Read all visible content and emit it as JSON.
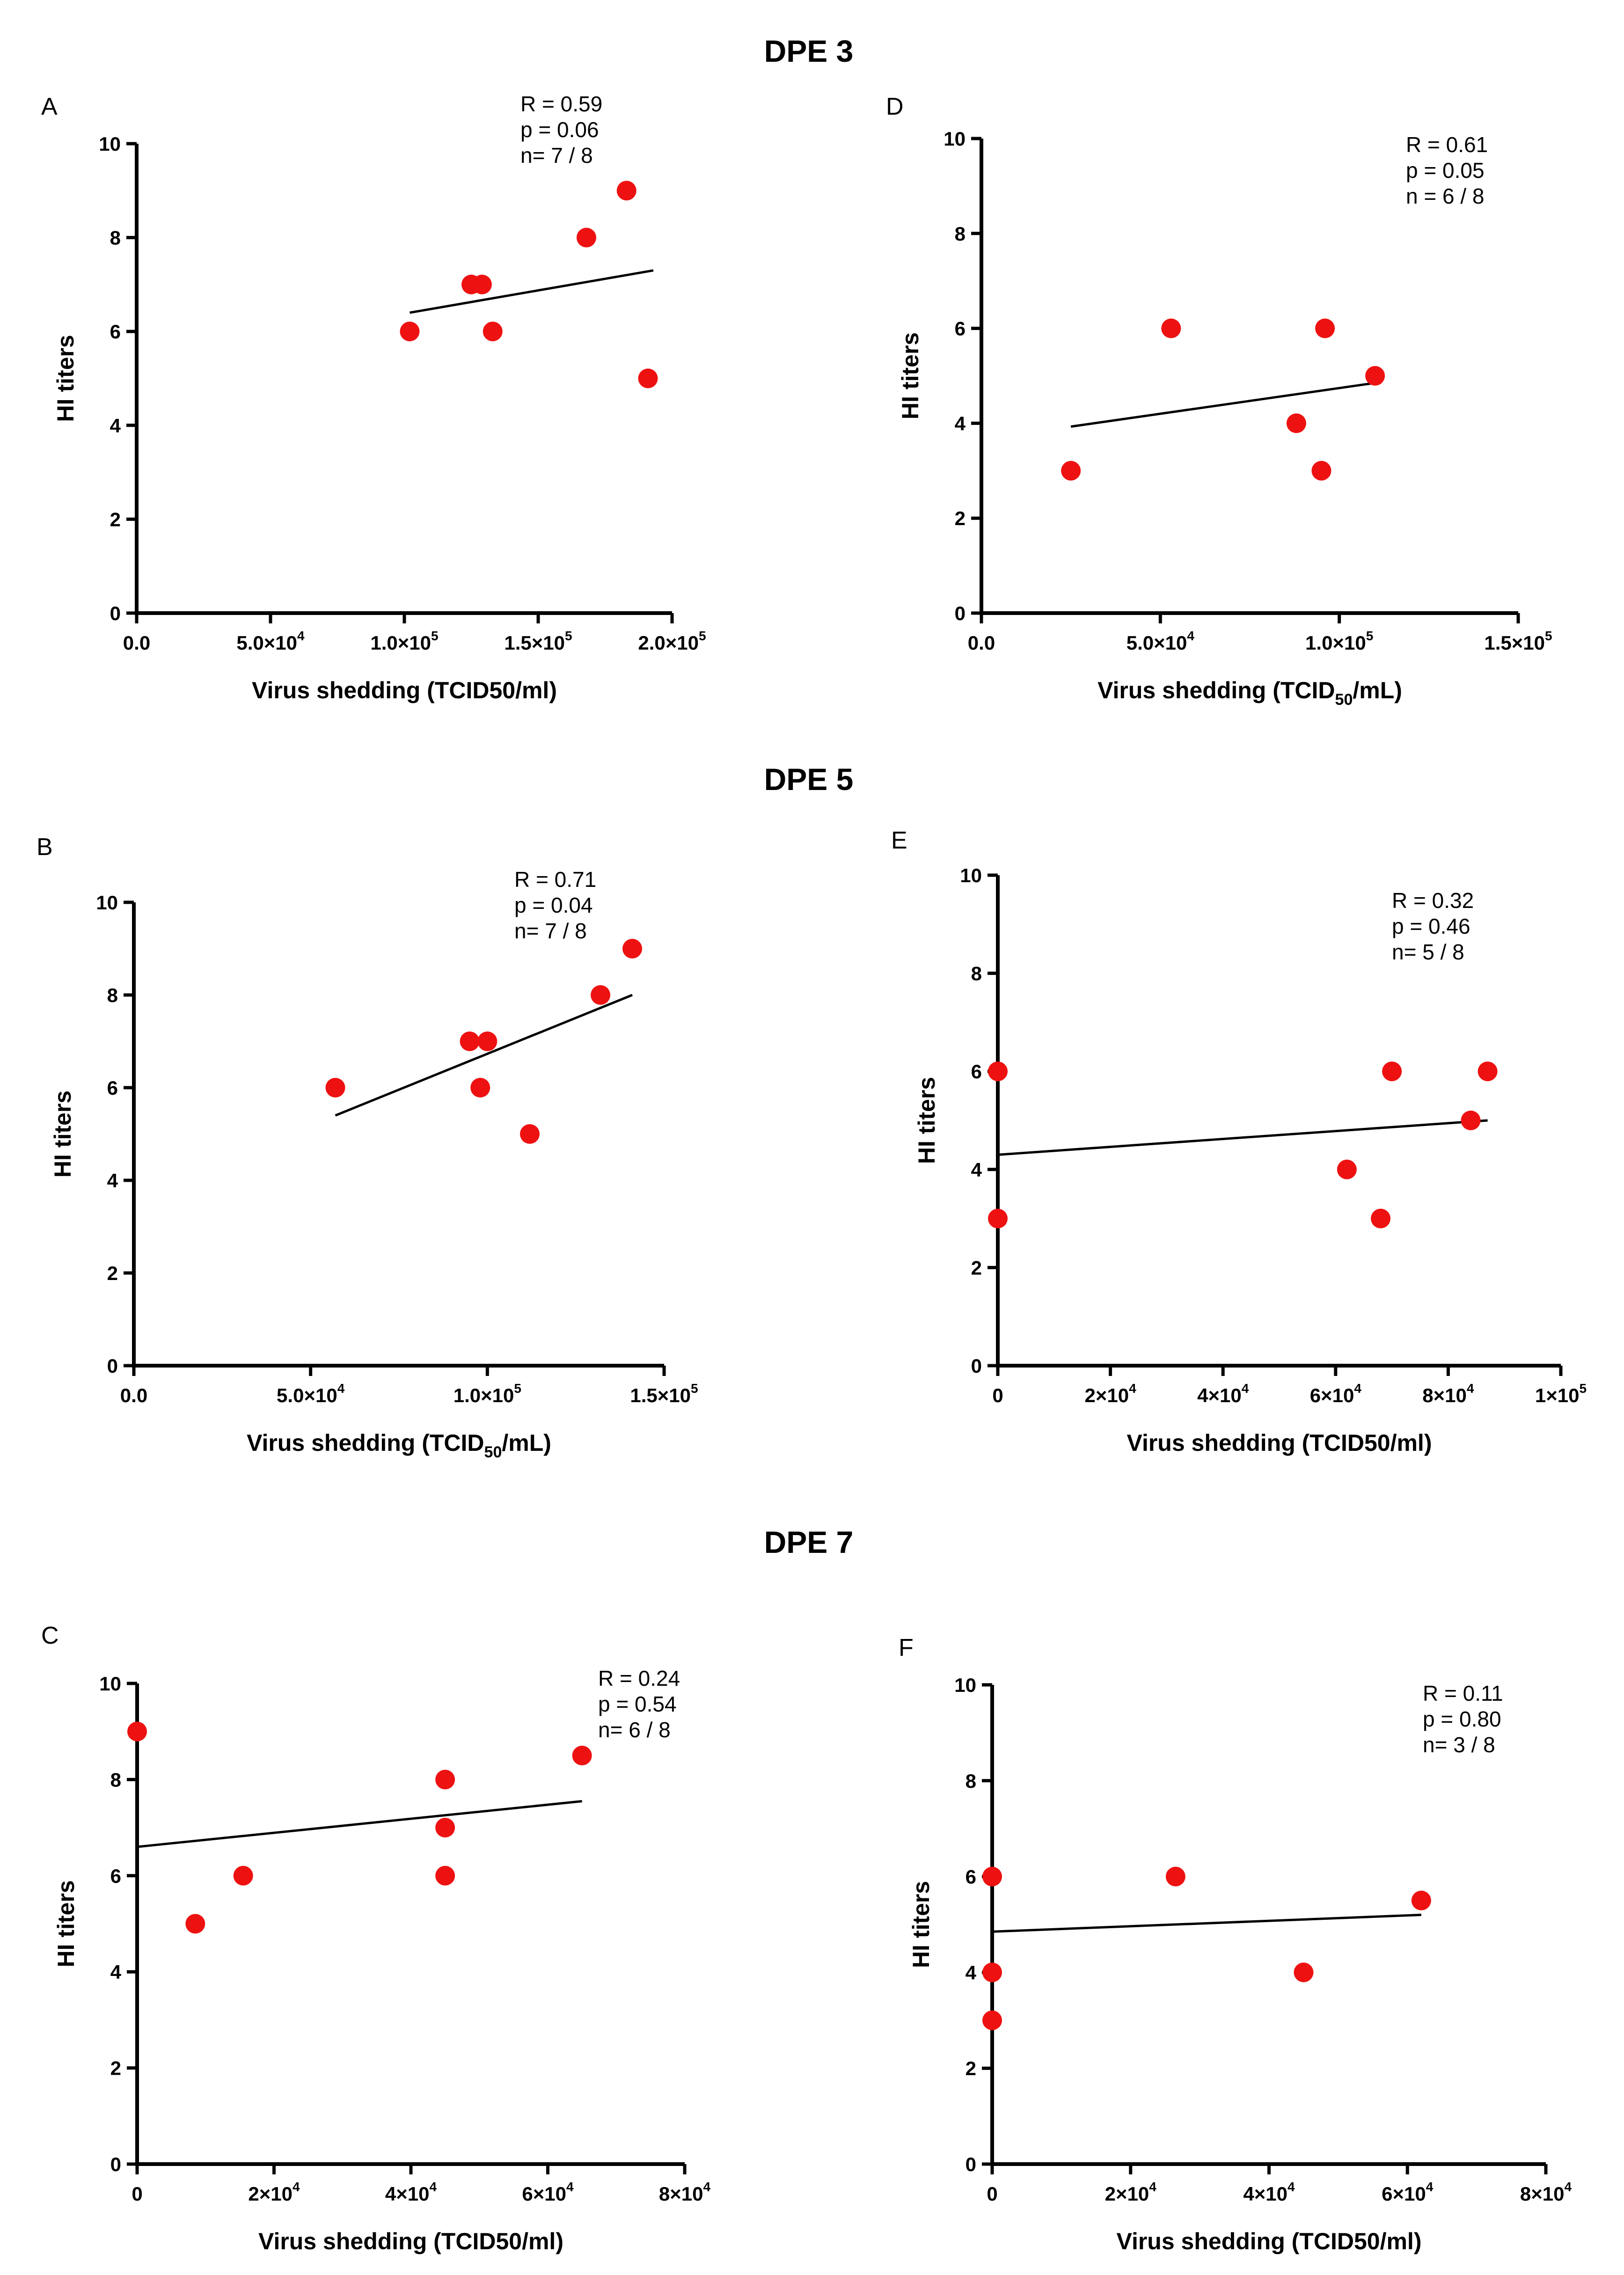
{
  "sections": [
    {
      "title": "DPE 3"
    },
    {
      "title": "DPE 5"
    },
    {
      "title": "DPE 7"
    }
  ],
  "chart_data": [
    {
      "panel": "A",
      "type": "scatter",
      "xlabel": "Virus shedding (TCID50/ml)",
      "ylabel": "HI titers",
      "xlim": [
        0,
        200000
      ],
      "ylim": [
        0,
        10
      ],
      "xticks": [
        {
          "v": 0,
          "label": "0.0"
        },
        {
          "v": 50000,
          "label": "5.0×10",
          "sup": "4"
        },
        {
          "v": 100000,
          "label": "1.0×10",
          "sup": "5"
        },
        {
          "v": 150000,
          "label": "1.5×10",
          "sup": "5"
        },
        {
          "v": 200000,
          "label": "2.0×10",
          "sup": "5"
        }
      ],
      "yticks": [
        0,
        2,
        4,
        6,
        8,
        10
      ],
      "points": [
        {
          "x": 102000,
          "y": 6
        },
        {
          "x": 125000,
          "y": 7
        },
        {
          "x": 129000,
          "y": 7
        },
        {
          "x": 133000,
          "y": 6
        },
        {
          "x": 168000,
          "y": 8
        },
        {
          "x": 183000,
          "y": 9
        },
        {
          "x": 191000,
          "y": 5
        }
      ],
      "fit": [
        {
          "x": 102000,
          "y": 6.4
        },
        {
          "x": 193000,
          "y": 7.3
        }
      ],
      "stats": [
        "R = 0.59",
        "p = 0.06",
        "n= 7 / 8"
      ]
    },
    {
      "panel": "D",
      "type": "scatter",
      "xlabel": "Virus shedding (TCID",
      "xlabel_sub": "50",
      "xlabel_tail": "/mL)",
      "ylabel": "HI titers",
      "xlim": [
        0,
        150000
      ],
      "ylim": [
        0,
        10
      ],
      "xticks": [
        {
          "v": 0,
          "label": "0.0"
        },
        {
          "v": 50000,
          "label": "5.0×10",
          "sup": "4"
        },
        {
          "v": 100000,
          "label": "1.0×10",
          "sup": "5"
        },
        {
          "v": 150000,
          "label": "1.5×10",
          "sup": "5"
        }
      ],
      "yticks": [
        0,
        2,
        4,
        6,
        8,
        10
      ],
      "points": [
        {
          "x": 25000,
          "y": 3
        },
        {
          "x": 53000,
          "y": 6
        },
        {
          "x": 88000,
          "y": 4
        },
        {
          "x": 95000,
          "y": 3
        },
        {
          "x": 96000,
          "y": 6
        },
        {
          "x": 110000,
          "y": 5
        }
      ],
      "fit": [
        {
          "x": 25000,
          "y": 3.93
        },
        {
          "x": 110000,
          "y": 4.85
        }
      ],
      "stats": [
        "R = 0.61",
        "p = 0.05",
        "n = 6 / 8"
      ]
    },
    {
      "panel": "B",
      "type": "scatter",
      "xlabel": "Virus shedding (TCID",
      "xlabel_sub": "50",
      "xlabel_tail": "/mL)",
      "ylabel": "HI titers",
      "xlim": [
        0,
        150000
      ],
      "ylim": [
        0,
        10
      ],
      "xticks": [
        {
          "v": 0,
          "label": "0.0"
        },
        {
          "v": 50000,
          "label": "5.0×10",
          "sup": "4"
        },
        {
          "v": 100000,
          "label": "1.0×10",
          "sup": "5"
        },
        {
          "v": 150000,
          "label": "1.5×10",
          "sup": "5"
        }
      ],
      "yticks": [
        0,
        2,
        4,
        6,
        8,
        10
      ],
      "points": [
        {
          "x": 57000,
          "y": 6
        },
        {
          "x": 95000,
          "y": 7
        },
        {
          "x": 98000,
          "y": 6
        },
        {
          "x": 100000,
          "y": 7
        },
        {
          "x": 112000,
          "y": 5
        },
        {
          "x": 132000,
          "y": 8
        },
        {
          "x": 141000,
          "y": 9
        }
      ],
      "fit": [
        {
          "x": 57000,
          "y": 5.4
        },
        {
          "x": 141000,
          "y": 8.0
        }
      ],
      "stats": [
        "R = 0.71",
        "p = 0.04",
        "n= 7 / 8"
      ]
    },
    {
      "panel": "E",
      "type": "scatter",
      "xlabel": "Virus shedding (TCID50/ml)",
      "ylabel": "HI titers",
      "xlim": [
        0,
        100000
      ],
      "ylim": [
        0,
        10
      ],
      "xticks": [
        {
          "v": 0,
          "label": "0"
        },
        {
          "v": 20000,
          "label": "2×10",
          "sup": "4"
        },
        {
          "v": 40000,
          "label": "4×10",
          "sup": "4"
        },
        {
          "v": 60000,
          "label": "6×10",
          "sup": "4"
        },
        {
          "v": 80000,
          "label": "8×10",
          "sup": "4"
        },
        {
          "v": 100000,
          "label": "1×10",
          "sup": "5"
        }
      ],
      "yticks": [
        0,
        2,
        4,
        6,
        8,
        10
      ],
      "points": [
        {
          "x": 0,
          "y": 6
        },
        {
          "x": 0,
          "y": 3
        },
        {
          "x": 62000,
          "y": 4
        },
        {
          "x": 68000,
          "y": 3
        },
        {
          "x": 70000,
          "y": 6
        },
        {
          "x": 84000,
          "y": 5
        },
        {
          "x": 87000,
          "y": 6
        }
      ],
      "fit": [
        {
          "x": 0,
          "y": 4.3
        },
        {
          "x": 87000,
          "y": 5.0
        }
      ],
      "stats": [
        "R = 0.32",
        "p = 0.46",
        "n= 5 / 8"
      ]
    },
    {
      "panel": "C",
      "type": "scatter",
      "xlabel": "Virus shedding (TCID50/ml)",
      "ylabel": "HI titers",
      "xlim": [
        0,
        80000
      ],
      "ylim": [
        0,
        10
      ],
      "xticks": [
        {
          "v": 0,
          "label": "0"
        },
        {
          "v": 20000,
          "label": "2×10",
          "sup": "4"
        },
        {
          "v": 40000,
          "label": "4×10",
          "sup": "4"
        },
        {
          "v": 60000,
          "label": "6×10",
          "sup": "4"
        },
        {
          "v": 80000,
          "label": "8×10",
          "sup": "4"
        }
      ],
      "yticks": [
        0,
        2,
        4,
        6,
        8,
        10
      ],
      "points": [
        {
          "x": 0,
          "y": 9
        },
        {
          "x": 8500,
          "y": 5
        },
        {
          "x": 15500,
          "y": 6
        },
        {
          "x": 45000,
          "y": 8
        },
        {
          "x": 45000,
          "y": 7
        },
        {
          "x": 45000,
          "y": 6
        },
        {
          "x": 65000,
          "y": 8.5
        }
      ],
      "fit": [
        {
          "x": 0,
          "y": 6.6
        },
        {
          "x": 65000,
          "y": 7.55
        }
      ],
      "stats": [
        "R = 0.24",
        "p = 0.54",
        "n= 6 / 8"
      ]
    },
    {
      "panel": "F",
      "type": "scatter",
      "xlabel": "Virus shedding (TCID50/ml)",
      "ylabel": "HI titers",
      "xlim": [
        0,
        80000
      ],
      "ylim": [
        0,
        10
      ],
      "xticks": [
        {
          "v": 0,
          "label": "0"
        },
        {
          "v": 20000,
          "label": "2×10",
          "sup": "4"
        },
        {
          "v": 40000,
          "label": "4×10",
          "sup": "4"
        },
        {
          "v": 60000,
          "label": "6×10",
          "sup": "4"
        },
        {
          "v": 80000,
          "label": "8×10",
          "sup": "4"
        }
      ],
      "yticks": [
        0,
        2,
        4,
        6,
        8,
        10
      ],
      "points": [
        {
          "x": 0,
          "y": 6
        },
        {
          "x": 0,
          "y": 4
        },
        {
          "x": 0,
          "y": 3
        },
        {
          "x": 26500,
          "y": 6
        },
        {
          "x": 45000,
          "y": 4
        },
        {
          "x": 62000,
          "y": 5.5
        }
      ],
      "fit": [
        {
          "x": 0,
          "y": 4.85
        },
        {
          "x": 62000,
          "y": 5.2
        }
      ],
      "stats": [
        "R = 0.11",
        "p = 0.80",
        "n= 3 / 8"
      ]
    }
  ]
}
